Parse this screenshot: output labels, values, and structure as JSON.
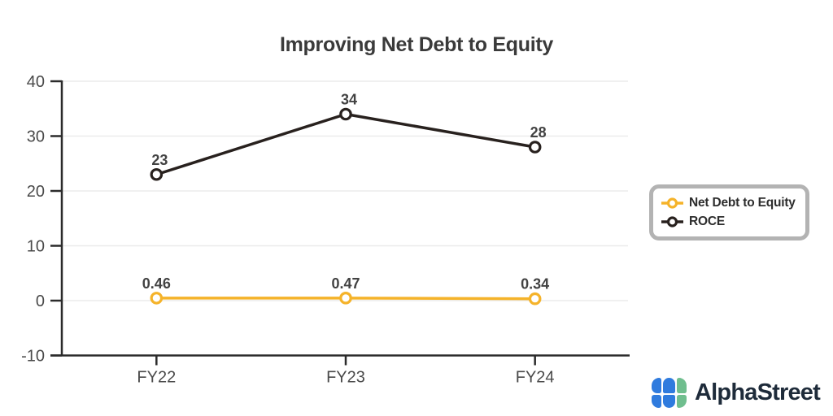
{
  "chart_data": {
    "type": "line",
    "title": "Improving Net Debt to Equity",
    "categories": [
      "FY22",
      "FY23",
      "FY24"
    ],
    "series": [
      {
        "name": "Net Debt to Equity",
        "color": "#F5B32A",
        "values": [
          0.46,
          0.47,
          0.34
        ],
        "labels": [
          "0.46",
          "0.47",
          "0.34"
        ]
      },
      {
        "name": "ROCE",
        "color": "#28211E",
        "values": [
          23,
          34,
          28
        ],
        "labels": [
          "23",
          "34",
          "28"
        ]
      }
    ],
    "ylim": [
      -10,
      40
    ],
    "yticks": [
      40,
      30,
      20,
      10,
      0,
      -10
    ],
    "xlabel": "",
    "ylabel": "",
    "grid": true,
    "legend_position": "right",
    "colors": {
      "axis": "#2B2B2B",
      "grid": "#EBEBEB",
      "tick_label": "#4A4A4A",
      "value_label": "#424242",
      "title": "#3A3A3A",
      "marker_fill": "#FFFFFF"
    }
  },
  "branding": {
    "logo_text": "AlphaStreet",
    "logo_blue": "#2F7BDE",
    "logo_green": "#6FBE8E"
  }
}
